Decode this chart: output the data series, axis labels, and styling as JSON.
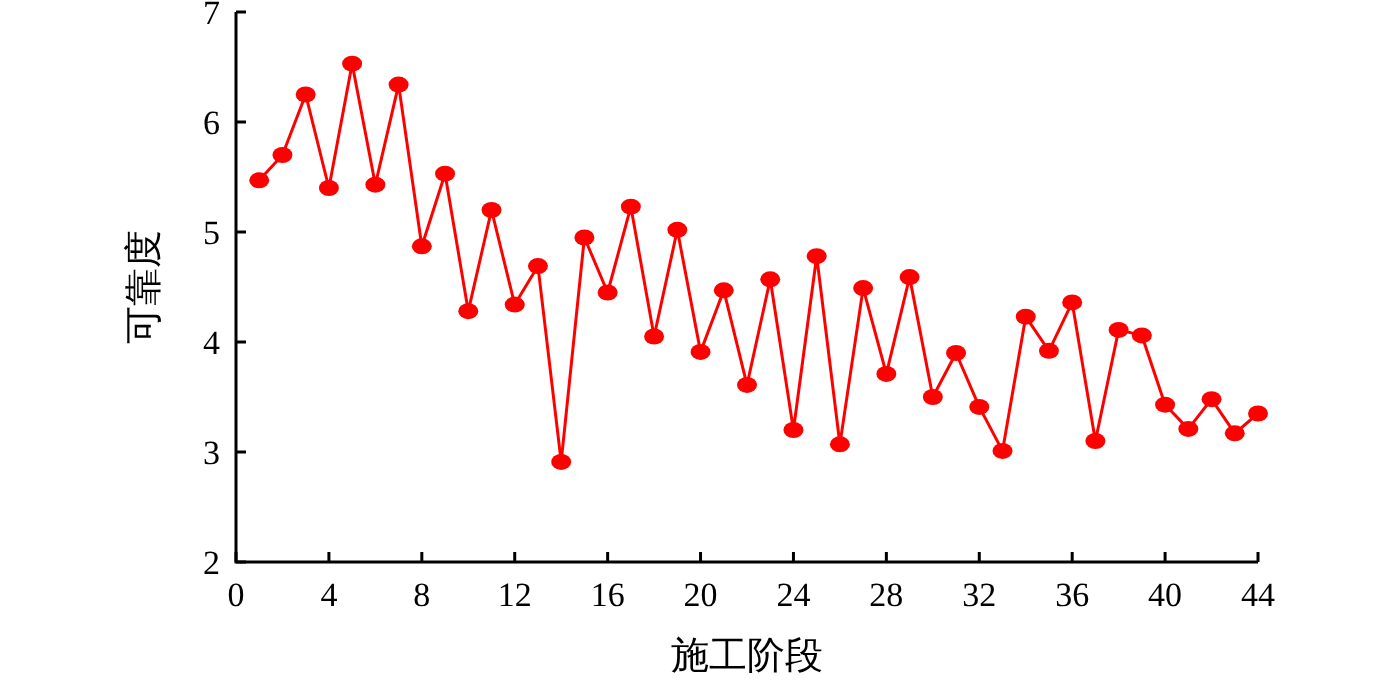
{
  "chart_data": {
    "type": "line",
    "xlabel": "施工阶段",
    "ylabel": "可靠度",
    "x": [
      1,
      2,
      3,
      4,
      5,
      6,
      7,
      8,
      9,
      10,
      11,
      12,
      13,
      14,
      15,
      16,
      17,
      18,
      19,
      20,
      21,
      22,
      23,
      24,
      25,
      26,
      27,
      28,
      29,
      30,
      31,
      32,
      33,
      34,
      35,
      36,
      37,
      38,
      39,
      40,
      41,
      42,
      43,
      44
    ],
    "series": [
      {
        "color": "#ff0000",
        "values": [
          5.47,
          5.7,
          6.25,
          5.4,
          6.53,
          5.43,
          6.34,
          4.87,
          5.53,
          4.28,
          5.2,
          4.34,
          4.69,
          2.91,
          4.95,
          4.45,
          5.23,
          4.05,
          5.02,
          3.91,
          4.47,
          3.61,
          4.57,
          3.2,
          4.78,
          3.07,
          4.49,
          3.71,
          4.59,
          3.5,
          3.9,
          3.41,
          3.01,
          4.23,
          3.92,
          4.36,
          3.1,
          4.11,
          4.06,
          3.43,
          3.21,
          3.48,
          3.17,
          3.35
        ]
      }
    ],
    "xlim": [
      0,
      44
    ],
    "xticks": [
      0,
      4,
      8,
      12,
      16,
      20,
      24,
      28,
      32,
      36,
      40,
      44
    ],
    "ylim": [
      2,
      7
    ],
    "yticks": [
      2,
      3,
      4,
      5,
      6,
      7
    ],
    "grid": false,
    "marker": "circle",
    "line_style": "solid"
  }
}
